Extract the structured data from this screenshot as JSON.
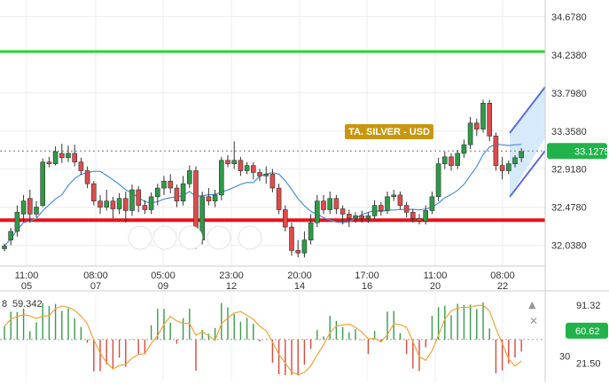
{
  "chart_data": {
    "type": "candlestick",
    "symbol_label": "TA. SILVER - USD",
    "price_axis": {
      "ticks": [
        "34.6780",
        "34.2380",
        "33.7980",
        "33.3580",
        "32.9180",
        "32.4780",
        "32.0380"
      ],
      "ylim": [
        31.8,
        34.87
      ]
    },
    "current_price": "33.1275",
    "support_level": 32.33,
    "resistance_level": 34.275,
    "moving_average": "light blue line",
    "x_ticks": [
      {
        "time": "11:00",
        "day": "05"
      },
      {
        "time": "08:00",
        "day": "07"
      },
      {
        "time": "05:00",
        "day": "09"
      },
      {
        "time": "23:00",
        "day": "12"
      },
      {
        "time": "20:00",
        "day": "14"
      },
      {
        "time": "17:00",
        "day": "16"
      },
      {
        "time": "11:00",
        "day": "20"
      },
      {
        "time": "08:00",
        "day": "22"
      }
    ],
    "candles": [
      [
        32.0,
        32.03,
        31.97,
        32.06
      ],
      [
        32.1,
        32.2,
        32.04,
        32.24
      ],
      [
        32.2,
        32.42,
        32.14,
        32.5
      ],
      [
        32.4,
        32.55,
        32.31,
        32.62
      ],
      [
        32.58,
        32.4,
        32.3,
        32.68
      ],
      [
        32.4,
        32.48,
        32.36,
        32.55
      ],
      [
        32.5,
        33.0,
        32.48,
        33.04
      ],
      [
        33.0,
        32.98,
        32.94,
        33.06
      ],
      [
        32.98,
        33.12,
        32.96,
        33.18
      ],
      [
        33.1,
        33.05,
        32.99,
        33.21
      ],
      [
        33.05,
        33.1,
        33.0,
        33.19
      ],
      [
        33.1,
        33.0,
        32.95,
        33.2
      ],
      [
        33.0,
        32.9,
        32.85,
        33.05
      ],
      [
        32.9,
        32.75,
        32.7,
        32.95
      ],
      [
        32.75,
        32.55,
        32.5,
        32.78
      ],
      [
        32.55,
        32.48,
        32.4,
        32.62
      ],
      [
        32.48,
        32.55,
        32.44,
        32.68
      ],
      [
        32.55,
        32.46,
        32.35,
        32.6
      ],
      [
        32.46,
        32.58,
        32.4,
        32.64
      ],
      [
        32.58,
        32.44,
        32.3,
        32.66
      ],
      [
        32.44,
        32.68,
        32.38,
        32.74
      ],
      [
        32.68,
        32.5,
        32.42,
        32.72
      ],
      [
        32.5,
        32.45,
        32.4,
        32.56
      ],
      [
        32.45,
        32.6,
        32.4,
        32.65
      ],
      [
        32.6,
        32.7,
        32.5,
        32.75
      ],
      [
        32.7,
        32.78,
        32.62,
        32.84
      ],
      [
        32.78,
        32.7,
        32.64,
        32.86
      ],
      [
        32.7,
        32.55,
        32.48,
        32.74
      ],
      [
        32.55,
        32.75,
        32.5,
        32.84
      ],
      [
        32.75,
        32.9,
        32.7,
        32.96
      ],
      [
        32.9,
        32.1,
        32.0,
        32.95
      ],
      [
        32.1,
        32.6,
        32.05,
        32.66
      ],
      [
        32.6,
        32.55,
        32.5,
        32.7
      ],
      [
        32.55,
        32.62,
        32.48,
        32.68
      ],
      [
        32.62,
        33.02,
        32.56,
        33.06
      ],
      [
        33.02,
        32.98,
        32.94,
        33.08
      ],
      [
        32.98,
        33.02,
        32.92,
        33.24
      ],
      [
        33.02,
        32.9,
        32.84,
        33.06
      ],
      [
        32.9,
        32.96,
        32.86,
        33.0
      ],
      [
        32.96,
        32.88,
        32.8,
        33.0
      ],
      [
        32.88,
        32.84,
        32.78,
        32.92
      ],
      [
        32.84,
        32.86,
        32.75,
        32.95
      ],
      [
        32.86,
        32.7,
        32.65,
        32.92
      ],
      [
        32.7,
        32.45,
        32.4,
        32.75
      ],
      [
        32.45,
        32.25,
        32.2,
        32.5
      ],
      [
        32.25,
        31.98,
        31.92,
        32.3
      ],
      [
        31.98,
        31.95,
        31.9,
        32.1
      ],
      [
        31.95,
        32.1,
        31.9,
        32.2
      ],
      [
        32.1,
        32.3,
        32.05,
        32.4
      ],
      [
        32.3,
        32.55,
        32.25,
        32.62
      ],
      [
        32.55,
        32.45,
        32.4,
        32.62
      ],
      [
        32.45,
        32.58,
        32.4,
        32.66
      ],
      [
        32.58,
        32.46,
        32.4,
        32.62
      ],
      [
        32.46,
        32.4,
        32.28,
        32.5
      ],
      [
        32.4,
        32.35,
        32.25,
        32.45
      ],
      [
        32.35,
        32.38,
        32.3,
        32.42
      ],
      [
        32.38,
        32.35,
        32.3,
        32.44
      ],
      [
        32.35,
        32.38,
        32.3,
        32.42
      ],
      [
        32.38,
        32.5,
        32.34,
        32.56
      ],
      [
        32.5,
        32.44,
        32.38,
        32.54
      ],
      [
        32.44,
        32.6,
        32.4,
        32.66
      ],
      [
        32.6,
        32.62,
        32.55,
        32.68
      ],
      [
        32.62,
        32.5,
        32.45,
        32.66
      ],
      [
        32.5,
        32.42,
        32.36,
        32.54
      ],
      [
        32.42,
        32.35,
        32.3,
        32.46
      ],
      [
        32.35,
        32.32,
        32.28,
        32.4
      ],
      [
        32.32,
        32.44,
        32.28,
        32.5
      ],
      [
        32.44,
        32.6,
        32.4,
        32.66
      ],
      [
        32.6,
        32.98,
        32.55,
        33.05
      ],
      [
        32.98,
        33.06,
        32.92,
        33.12
      ],
      [
        33.06,
        32.96,
        32.9,
        33.1
      ],
      [
        32.96,
        33.1,
        32.92,
        33.14
      ],
      [
        33.1,
        33.2,
        33.05,
        33.26
      ],
      [
        33.2,
        33.45,
        33.15,
        33.52
      ],
      [
        33.45,
        33.38,
        33.3,
        33.5
      ],
      [
        33.38,
        33.68,
        33.34,
        33.72
      ],
      [
        33.68,
        33.3,
        33.24,
        33.72
      ],
      [
        33.3,
        32.96,
        32.9,
        33.34
      ],
      [
        32.96,
        32.9,
        32.8,
        33.06
      ],
      [
        32.9,
        32.98,
        32.86,
        33.02
      ],
      [
        32.98,
        33.05,
        32.94,
        33.08
      ],
      [
        33.05,
        33.12,
        33.0,
        33.16
      ]
    ],
    "oscillator": {
      "period_label": "8",
      "value_label": "59.342",
      "scale_ticks": [
        "91.32",
        "30",
        "21.50"
      ],
      "current": "60.62",
      "range": [
        5,
        100
      ]
    }
  },
  "controls": {
    "nav_icons": [
      "scroll-left-icon",
      "zoom-out-icon",
      "reset-icon",
      "zoom-in-icon",
      "scroll-right-icon"
    ],
    "pane_icons": [
      "up-arrow-icon",
      "close-icon"
    ]
  },
  "colors": {
    "up": "#2e9a48",
    "down": "#de4b4b",
    "support": "#e8111c",
    "resistance": "#29d435",
    "ma": "#4a90d9",
    "price_tag": "#21b34a",
    "symbol_label_bg": "#c8970f",
    "osc_line": "#f0a33a"
  }
}
